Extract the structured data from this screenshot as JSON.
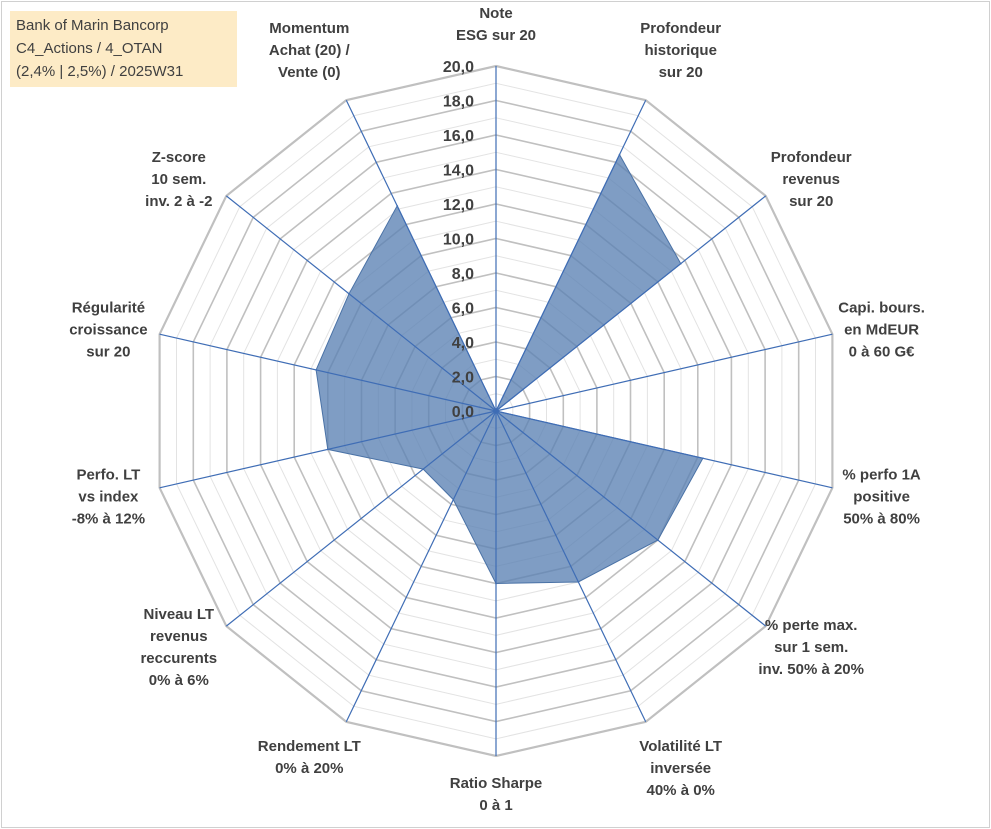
{
  "title": {
    "line1": "Bank of Marin Bancorp",
    "line2": "C4_Actions / 4_OTAN",
    "line3": "(2,4% | 2,5%) / 2025W31"
  },
  "chart_data": {
    "type": "radar",
    "rmin": 0,
    "rmax": 20,
    "tick_step": 2,
    "tick_labels": [
      "0,0",
      "2,0",
      "4,0",
      "6,0",
      "8,0",
      "10,0",
      "12,0",
      "14,0",
      "16,0",
      "18,0",
      "20,0"
    ],
    "grid": true,
    "axes": [
      {
        "label": [
          "Note",
          "ESG sur 20"
        ],
        "value": 0
      },
      {
        "label": [
          "Profondeur",
          "historique",
          "sur 20"
        ],
        "value": 16.5
      },
      {
        "label": [
          "Profondeur",
          "revenus",
          "sur 20"
        ],
        "value": 13.7
      },
      {
        "label": [
          "Capi. bours.",
          "en MdEUR",
          "0 à 60 G€"
        ],
        "value": 0
      },
      {
        "label": [
          "% perfo 1A",
          "positive",
          "50% à 80%"
        ],
        "value": 12.3
      },
      {
        "label": [
          "% perte max.",
          "sur 1 sem.",
          "inv. 50% à 20%"
        ],
        "value": 12.0
      },
      {
        "label": [
          "Volatilité LT",
          "inversée",
          "40% à 0%"
        ],
        "value": 11.0
      },
      {
        "label": [
          "Ratio Sharpe",
          "0 à 1"
        ],
        "value": 10.0
      },
      {
        "label": [
          "Rendement LT",
          "0% à 20%"
        ],
        "value": 5.7
      },
      {
        "label": [
          "Niveau LT",
          "revenus",
          "reccurents",
          "0% à 6%"
        ],
        "value": 5.4
      },
      {
        "label": [
          "Perfo. LT",
          "vs index",
          "-8% à 12%"
        ],
        "value": 10.0
      },
      {
        "label": [
          "Régularité",
          "croissance",
          "sur 20"
        ],
        "value": 10.7
      },
      {
        "label": [
          "Z-score",
          "10 sem.",
          "inv. 2 à -2"
        ],
        "value": 10.9
      },
      {
        "label": [
          "Momentum",
          "Achat (20) /",
          "Vente (0)"
        ],
        "value": 13.2
      }
    ],
    "colors": {
      "fill": "#5b82b3",
      "stroke": "#4a72a6",
      "spoke": "#3f6db5",
      "grid_major": "#c0c0c0",
      "grid_minor": "#e3e3e3"
    }
  }
}
